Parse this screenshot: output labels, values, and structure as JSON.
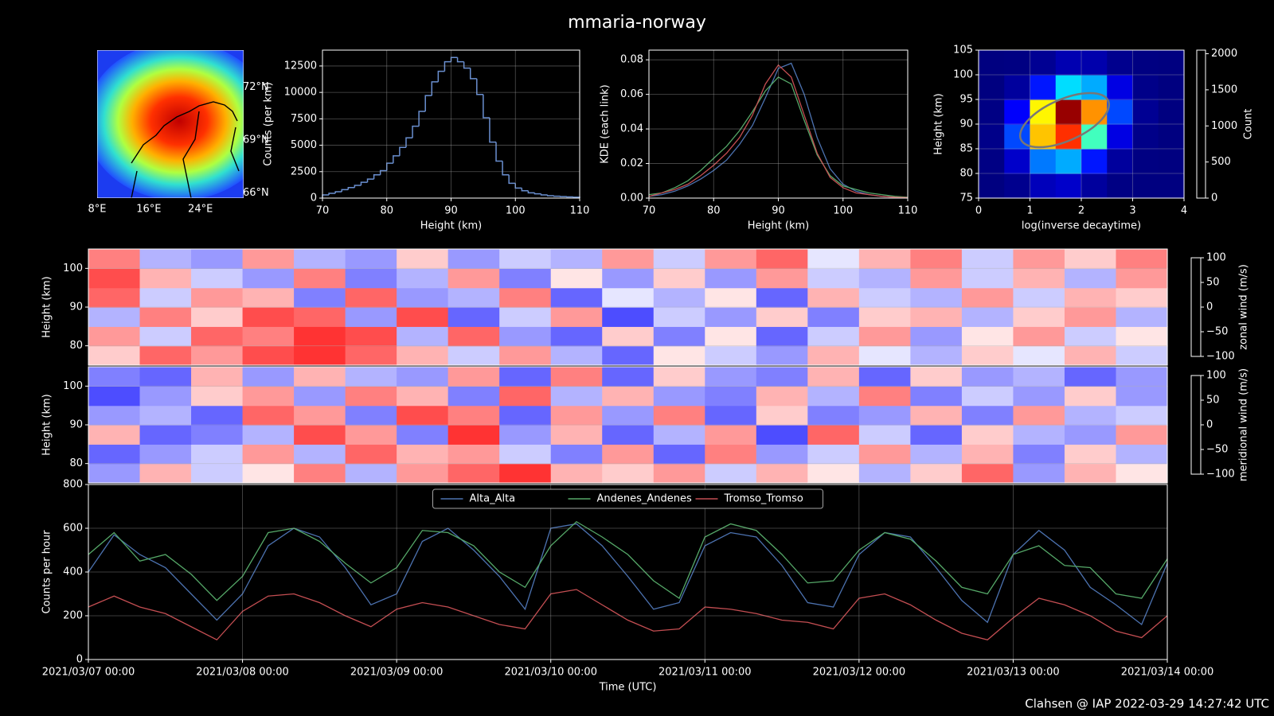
{
  "title": "mmaria-norway",
  "footer": "Clahsen @ IAP 2022-03-29 14:27:42 UTC",
  "chart_data": [
    {
      "type": "map",
      "xlim": [
        8,
        30.7
      ],
      "ylim": [
        65.7,
        74.1
      ],
      "xticks": [
        {
          "value": 8,
          "label": "8°E"
        },
        {
          "value": 16,
          "label": "16°E"
        },
        {
          "value": 24,
          "label": "24°E"
        }
      ],
      "yticks": [
        {
          "value": 66,
          "label": "66°N"
        },
        {
          "value": 69,
          "label": "69°N"
        },
        {
          "value": 72,
          "label": "72°N"
        }
      ]
    },
    {
      "type": "histogram",
      "bins": [
        70,
        71,
        72,
        73,
        74,
        75,
        76,
        77,
        78,
        79,
        80,
        81,
        82,
        83,
        84,
        85,
        86,
        87,
        88,
        89,
        90,
        91,
        92,
        93,
        94,
        95,
        96,
        97,
        98,
        99,
        100,
        101,
        102,
        103,
        104,
        105,
        106,
        107,
        108,
        109,
        110
      ],
      "values": [
        300,
        450,
        600,
        800,
        1000,
        1200,
        1500,
        1800,
        2200,
        2600,
        3300,
        4000,
        4800,
        5700,
        6800,
        8200,
        9700,
        11000,
        12000,
        12900,
        13300,
        12900,
        12300,
        11300,
        9800,
        7600,
        5300,
        3500,
        2200,
        1400,
        950,
        700,
        500,
        400,
        300,
        230,
        180,
        140,
        110,
        80
      ],
      "color": "#6a8fd0",
      "xlim": [
        70,
        110
      ],
      "ylim": [
        0,
        14000
      ],
      "xticks": [
        70,
        80,
        90,
        100,
        110
      ],
      "yticks": [
        0,
        2500,
        5000,
        7500,
        10000,
        12500
      ],
      "xlabel": "Height (km)",
      "ylabel": "Counts (per km)",
      "grid": true
    },
    {
      "type": "line",
      "x": [
        70,
        72,
        74,
        76,
        78,
        80,
        82,
        84,
        86,
        88,
        90,
        92,
        94,
        96,
        98,
        100,
        102,
        104,
        106,
        108,
        110
      ],
      "series": [
        {
          "name": "Alta_Alta",
          "color": "#4c72b0",
          "values": [
            0.001,
            0.002,
            0.004,
            0.007,
            0.011,
            0.016,
            0.022,
            0.031,
            0.042,
            0.058,
            0.075,
            0.078,
            0.06,
            0.035,
            0.017,
            0.008,
            0.004,
            0.002,
            0.001,
            0.0005,
            0.0003
          ]
        },
        {
          "name": "Andenes_Andenes",
          "color": "#55a868",
          "values": [
            0.002,
            0.003,
            0.006,
            0.01,
            0.016,
            0.023,
            0.03,
            0.039,
            0.05,
            0.062,
            0.07,
            0.066,
            0.045,
            0.025,
            0.013,
            0.007,
            0.005,
            0.003,
            0.002,
            0.001,
            0.0005
          ]
        },
        {
          "name": "Tromso_Tromso",
          "color": "#c44e52",
          "values": [
            0.001,
            0.003,
            0.005,
            0.008,
            0.013,
            0.019,
            0.026,
            0.035,
            0.048,
            0.066,
            0.077,
            0.07,
            0.048,
            0.026,
            0.012,
            0.006,
            0.003,
            0.002,
            0.001,
            0.0005,
            0.0003
          ]
        }
      ],
      "xlim": [
        70,
        110
      ],
      "ylim": [
        0,
        0.0856
      ],
      "xticks": [
        70,
        80,
        90,
        100,
        110
      ],
      "yticks": [
        {
          "value": 0,
          "label": "0.00"
        },
        0.02,
        0.04,
        0.06,
        0.08
      ],
      "xlabel": "Height (km)",
      "ylabel": "KDE (each link)",
      "grid": true
    },
    {
      "type": "heatmap",
      "x": [
        0.25,
        0.75,
        1.25,
        1.75,
        2.25,
        2.75,
        3.25,
        3.75
      ],
      "y": [
        77.5,
        82.5,
        87.5,
        92.5,
        97.5,
        102.5
      ],
      "z": [
        [
          0,
          30,
          120,
          150,
          60,
          10,
          0,
          0
        ],
        [
          10,
          150,
          500,
          600,
          300,
          60,
          5,
          0
        ],
        [
          20,
          400,
          1400,
          1700,
          900,
          200,
          20,
          0
        ],
        [
          10,
          250,
          1300,
          2000,
          1500,
          400,
          40,
          0
        ],
        [
          0,
          60,
          300,
          700,
          600,
          200,
          20,
          0
        ],
        [
          0,
          5,
          40,
          100,
          90,
          30,
          5,
          0
        ]
      ],
      "cmap": "jet",
      "xlim": [
        0,
        4
      ],
      "ylim": [
        75,
        105
      ],
      "xticks": [
        0,
        1,
        2,
        3,
        4
      ],
      "yticks": [
        75,
        80,
        85,
        90,
        95,
        100,
        105
      ],
      "zlim": [
        0,
        2050
      ],
      "zticks": [
        0,
        500,
        1000,
        1500,
        2000
      ],
      "xlabel": "log(inverse decaytime)",
      "ylabel": "Height (km)",
      "zlabel": "Count",
      "grid": true
    },
    {
      "type": "heatmap",
      "x": [
        "2021/03/07 04:00",
        "2021/03/07 12:00",
        "2021/03/07 20:00",
        "2021/03/08 04:00",
        "2021/03/08 12:00",
        "2021/03/08 20:00",
        "2021/03/09 04:00",
        "2021/03/09 12:00",
        "2021/03/09 20:00",
        "2021/03/10 04:00",
        "2021/03/10 12:00",
        "2021/03/10 20:00",
        "2021/03/11 04:00",
        "2021/03/11 12:00",
        "2021/03/11 20:00",
        "2021/03/12 04:00",
        "2021/03/12 12:00",
        "2021/03/12 20:00",
        "2021/03/13 04:00",
        "2021/03/13 12:00",
        "2021/03/13 20:00"
      ],
      "y": [
        77.5,
        82.5,
        87.5,
        92.5,
        97.5,
        102.5
      ],
      "z": [
        [
          20,
          60,
          40,
          70,
          80,
          60,
          30,
          -20,
          40,
          -30,
          -60,
          10,
          -20,
          -40,
          30,
          -10,
          -30,
          20,
          -10,
          30,
          -20
        ],
        [
          40,
          -20,
          60,
          50,
          80,
          70,
          -30,
          60,
          -40,
          -60,
          20,
          -50,
          10,
          -60,
          -20,
          40,
          -40,
          10,
          40,
          -20,
          10
        ],
        [
          -30,
          50,
          20,
          70,
          60,
          -40,
          70,
          -60,
          -20,
          40,
          -70,
          -20,
          -40,
          20,
          -50,
          20,
          30,
          -30,
          20,
          40,
          -30
        ],
        [
          60,
          -20,
          40,
          30,
          -50,
          60,
          -40,
          -30,
          50,
          -60,
          -10,
          -30,
          10,
          -60,
          30,
          -20,
          -30,
          40,
          -20,
          30,
          20
        ],
        [
          70,
          30,
          -20,
          -40,
          50,
          -50,
          -30,
          40,
          -50,
          10,
          -40,
          20,
          -40,
          40,
          -20,
          -30,
          40,
          -20,
          30,
          -30,
          40
        ],
        [
          50,
          -30,
          -40,
          40,
          -30,
          -40,
          20,
          -40,
          -20,
          -30,
          40,
          -20,
          40,
          60,
          -10,
          30,
          50,
          -20,
          40,
          20,
          50
        ]
      ],
      "cmap": "bwr",
      "xlim": [
        "2021/03/07 00:00",
        "2021/03/14 00:00"
      ],
      "ylim": [
        75,
        105
      ],
      "yticks": [
        80,
        90,
        100
      ],
      "zlim": [
        -100,
        100
      ],
      "zticks": [
        {
          "value": -100,
          "label": "−100"
        },
        {
          "value": -50,
          "label": "−50"
        },
        0,
        50,
        100
      ],
      "ylabel": "Height (km)",
      "zlabel": "zonal wind (m/s)",
      "grid": true
    },
    {
      "type": "heatmap",
      "x": [
        "2021/03/07 04:00",
        "2021/03/07 12:00",
        "2021/03/07 20:00",
        "2021/03/08 04:00",
        "2021/03/08 12:00",
        "2021/03/08 20:00",
        "2021/03/09 04:00",
        "2021/03/09 12:00",
        "2021/03/09 20:00",
        "2021/03/10 04:00",
        "2021/03/10 12:00",
        "2021/03/10 20:00",
        "2021/03/11 04:00",
        "2021/03/11 12:00",
        "2021/03/11 20:00",
        "2021/03/12 04:00",
        "2021/03/12 12:00",
        "2021/03/12 20:00",
        "2021/03/13 04:00",
        "2021/03/13 12:00",
        "2021/03/13 20:00"
      ],
      "y": [
        77.5,
        82.5,
        87.5,
        92.5,
        97.5,
        102.5
      ],
      "z": [
        [
          -40,
          30,
          -20,
          10,
          50,
          -30,
          40,
          60,
          80,
          30,
          20,
          40,
          -20,
          30,
          10,
          -30,
          20,
          60,
          -40,
          30,
          10
        ],
        [
          -60,
          -40,
          -20,
          40,
          -30,
          60,
          30,
          40,
          -20,
          -50,
          40,
          -60,
          50,
          -40,
          -20,
          40,
          -30,
          30,
          -50,
          20,
          -30
        ],
        [
          30,
          -60,
          -50,
          -30,
          70,
          40,
          -50,
          80,
          -40,
          30,
          -60,
          -30,
          40,
          -70,
          60,
          -20,
          -60,
          20,
          -30,
          -40,
          40
        ],
        [
          -40,
          -30,
          -60,
          60,
          40,
          -50,
          70,
          50,
          -60,
          40,
          -40,
          50,
          -60,
          20,
          -50,
          -40,
          30,
          -50,
          40,
          -30,
          -20
        ],
        [
          -70,
          -40,
          20,
          40,
          -40,
          50,
          30,
          -50,
          60,
          -30,
          30,
          -40,
          -50,
          30,
          -30,
          50,
          -50,
          -20,
          -40,
          20,
          -40
        ],
        [
          -50,
          -60,
          30,
          -40,
          30,
          -30,
          -40,
          40,
          -60,
          50,
          -60,
          20,
          -40,
          -50,
          30,
          -60,
          20,
          -40,
          -30,
          -60,
          -40
        ]
      ],
      "cmap": "bwr",
      "xlim": [
        "2021/03/07 00:00",
        "2021/03/14 00:00"
      ],
      "ylim": [
        75,
        105
      ],
      "yticks": [
        80,
        90,
        100
      ],
      "zlim": [
        -100,
        100
      ],
      "zticks": [
        {
          "value": -100,
          "label": "−100"
        },
        {
          "value": -50,
          "label": "−50"
        },
        0,
        50,
        100
      ],
      "ylabel": "Height (km)",
      "zlabel": "meridional wind (m/s)",
      "grid": true
    },
    {
      "type": "line",
      "x": [
        "2021/03/07 00:00",
        "2021/03/07 04:00",
        "2021/03/07 08:00",
        "2021/03/07 12:00",
        "2021/03/07 16:00",
        "2021/03/07 20:00",
        "2021/03/08 00:00",
        "2021/03/08 04:00",
        "2021/03/08 08:00",
        "2021/03/08 12:00",
        "2021/03/08 16:00",
        "2021/03/08 20:00",
        "2021/03/09 00:00",
        "2021/03/09 04:00",
        "2021/03/09 08:00",
        "2021/03/09 12:00",
        "2021/03/09 16:00",
        "2021/03/09 20:00",
        "2021/03/10 00:00",
        "2021/03/10 04:00",
        "2021/03/10 08:00",
        "2021/03/10 12:00",
        "2021/03/10 16:00",
        "2021/03/10 20:00",
        "2021/03/11 00:00",
        "2021/03/11 04:00",
        "2021/03/11 08:00",
        "2021/03/11 12:00",
        "2021/03/11 16:00",
        "2021/03/11 20:00",
        "2021/03/12 00:00",
        "2021/03/12 04:00",
        "2021/03/12 08:00",
        "2021/03/12 12:00",
        "2021/03/12 16:00",
        "2021/03/12 20:00",
        "2021/03/13 00:00",
        "2021/03/13 04:00",
        "2021/03/13 08:00",
        "2021/03/13 12:00",
        "2021/03/13 16:00",
        "2021/03/13 20:00",
        "2021/03/14 00:00"
      ],
      "series": [
        {
          "name": "Alta_Alta",
          "color": "#4c72b0",
          "values": [
            400,
            570,
            480,
            420,
            300,
            180,
            300,
            520,
            600,
            560,
            420,
            250,
            300,
            540,
            600,
            500,
            380,
            230,
            600,
            620,
            520,
            380,
            230,
            260,
            520,
            580,
            560,
            430,
            260,
            240,
            480,
            580,
            560,
            420,
            270,
            170,
            480,
            590,
            500,
            330,
            250,
            160,
            440
          ]
        },
        {
          "name": "Andenes_Andenes",
          "color": "#55a868",
          "values": [
            480,
            580,
            450,
            480,
            390,
            270,
            380,
            580,
            600,
            540,
            440,
            350,
            420,
            590,
            580,
            520,
            400,
            330,
            520,
            630,
            560,
            480,
            360,
            280,
            560,
            620,
            590,
            480,
            350,
            360,
            500,
            580,
            550,
            450,
            330,
            300,
            480,
            520,
            430,
            420,
            300,
            280,
            460
          ]
        },
        {
          "name": "Tromso_Tromso",
          "color": "#c44e52",
          "values": [
            240,
            290,
            240,
            210,
            150,
            90,
            220,
            290,
            300,
            260,
            200,
            150,
            230,
            260,
            240,
            200,
            160,
            140,
            300,
            320,
            250,
            180,
            130,
            140,
            240,
            230,
            210,
            180,
            170,
            140,
            280,
            300,
            250,
            180,
            120,
            90,
            190,
            280,
            250,
            200,
            130,
            100,
            200
          ]
        }
      ],
      "xlim": [
        "2021/03/07 00:00",
        "2021/03/14 00:00"
      ],
      "ylim": [
        0,
        800
      ],
      "xticks": [
        "2021/03/07 00:00",
        "2021/03/08 00:00",
        "2021/03/09 00:00",
        "2021/03/10 00:00",
        "2021/03/11 00:00",
        "2021/03/12 00:00",
        "2021/03/13 00:00",
        "2021/03/14 00:00"
      ],
      "yticks": [
        0,
        200,
        400,
        600,
        800
      ],
      "xlabel": "Time (UTC)",
      "ylabel": "Counts per hour",
      "legend": "upper center",
      "grid": true
    }
  ]
}
